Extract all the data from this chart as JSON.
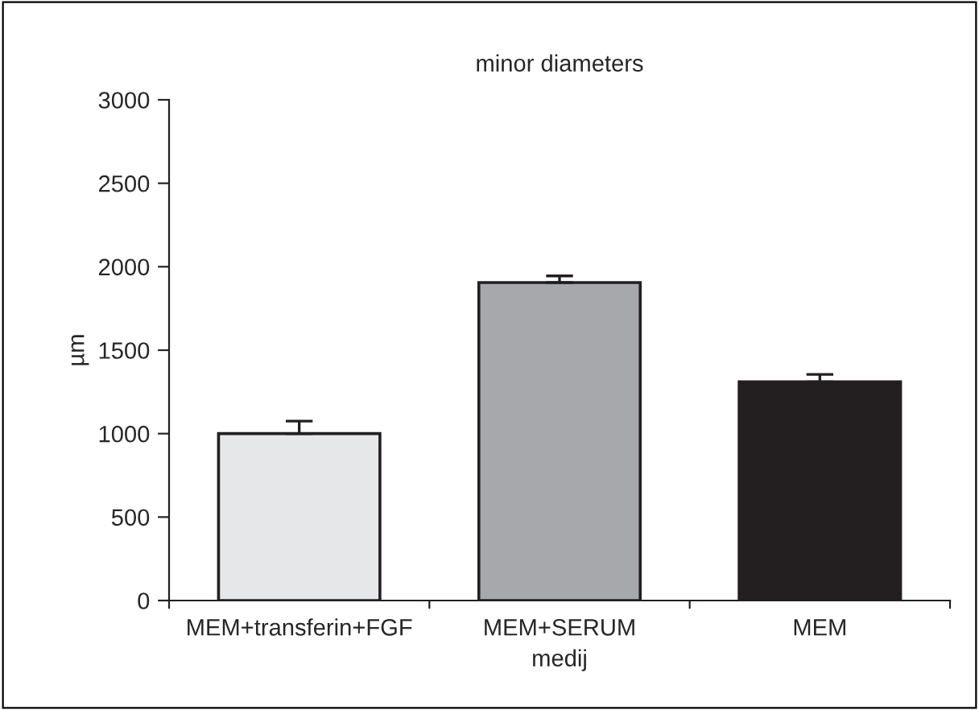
{
  "chart_data": {
    "type": "bar",
    "title": "minor diameters",
    "xlabel": "medij",
    "ylabel": "µm",
    "categories": [
      "MEM+transferin+FGF",
      "MEM+SERUM",
      "MEM"
    ],
    "values": [
      1000,
      1905,
      1310
    ],
    "errors": [
      [
        1000,
        1075
      ],
      [
        1905,
        1945
      ],
      [
        1310,
        1355
      ]
    ],
    "colors": [
      "#e6e7e9",
      "#a7a8ab",
      "#231f20"
    ],
    "ylim": [
      0,
      3000
    ],
    "yticks": [
      0,
      500,
      1000,
      1500,
      2000,
      2500,
      3000
    ],
    "grid": false,
    "legend": false
  }
}
